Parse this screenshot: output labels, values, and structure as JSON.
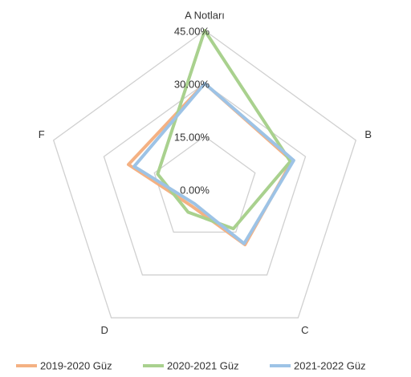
{
  "chart_data": {
    "type": "radar",
    "categories": [
      "A Notları",
      "B",
      "C",
      "D",
      "F"
    ],
    "ylim": [
      0,
      45
    ],
    "yticks": [
      {
        "value": 0,
        "label": "0.00%"
      },
      {
        "value": 15,
        "label": "15.00%"
      },
      {
        "value": 30,
        "label": "30.00%"
      },
      {
        "value": 45,
        "label": "45.00%"
      }
    ],
    "grid": true,
    "legend": "bottom",
    "series": [
      {
        "name": "2019-2020 Güz",
        "color": "#f4b183",
        "values": [
          30,
          26,
          19.4,
          6,
          22.7
        ]
      },
      {
        "name": "2020-2021 Güz",
        "color": "#a9d18e",
        "values": [
          45,
          25.5,
          13.8,
          8,
          14
        ]
      },
      {
        "name": "2021-2022 Güz",
        "color": "#9dc3e6",
        "values": [
          30,
          26.5,
          19,
          5,
          21
        ]
      }
    ]
  }
}
